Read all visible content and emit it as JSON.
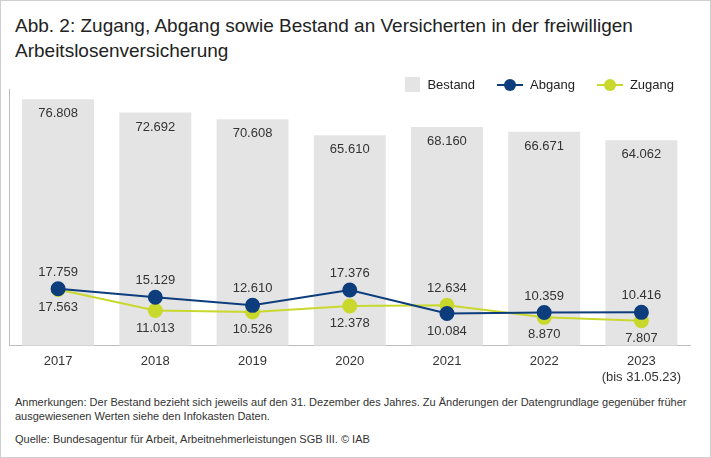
{
  "chart_data": {
    "type": "bar",
    "title": "Abb. 2: Zugang, Abgang sowie Bestand an Versicherten in der freiwilligen Arbeitslosenversicherung",
    "categories": [
      "2017",
      "2018",
      "2019",
      "2020",
      "2021",
      "2022",
      [
        "2023",
        "(bis 31.05.23)"
      ]
    ],
    "series": [
      {
        "name": "Bestand",
        "type": "bar",
        "color": "#e4e4e4",
        "values": [
          76808,
          72692,
          70608,
          65610,
          68160,
          66671,
          64062
        ],
        "value_labels": [
          "76.808",
          "72.692",
          "70.608",
          "65.610",
          "68.160",
          "66.671",
          "64.062"
        ]
      },
      {
        "name": "Abgang",
        "type": "line",
        "color": "#0d3d7c",
        "marker": "circle",
        "line_style": "solid",
        "values": [
          17759,
          15129,
          12610,
          17376,
          10084,
          10359,
          10416
        ],
        "value_labels": [
          "17.759",
          "15.129",
          "12.610",
          "17.376",
          "10.084",
          "10.359",
          "10.416"
        ]
      },
      {
        "name": "Zugang",
        "type": "line",
        "color": "#c9d82c",
        "marker": "circle",
        "line_style": "solid",
        "values": [
          17563,
          11013,
          10526,
          12378,
          12634,
          8870,
          7807
        ],
        "value_labels": [
          "17.563",
          "11.013",
          "10.526",
          "12.378",
          "12.634",
          "8.870",
          "7.807"
        ]
      }
    ],
    "ylim": [
      0,
      80000
    ],
    "yticks": [],
    "grid": false,
    "legend": "top-right",
    "data_labels": true,
    "tick_labels": "x",
    "notes": "Anmerkungen: Der Bestand bezieht sich jeweils auf den 31. Dezember des Jahres. Zu Änderungen der Datengrundlage gegenüber früher ausgewiesenen Werten siehe den Infokasten Daten.",
    "source": "Quelle: Bundesagentur für Arbeit, Arbeitnehmerleistungen SGB III.  © IAB"
  }
}
